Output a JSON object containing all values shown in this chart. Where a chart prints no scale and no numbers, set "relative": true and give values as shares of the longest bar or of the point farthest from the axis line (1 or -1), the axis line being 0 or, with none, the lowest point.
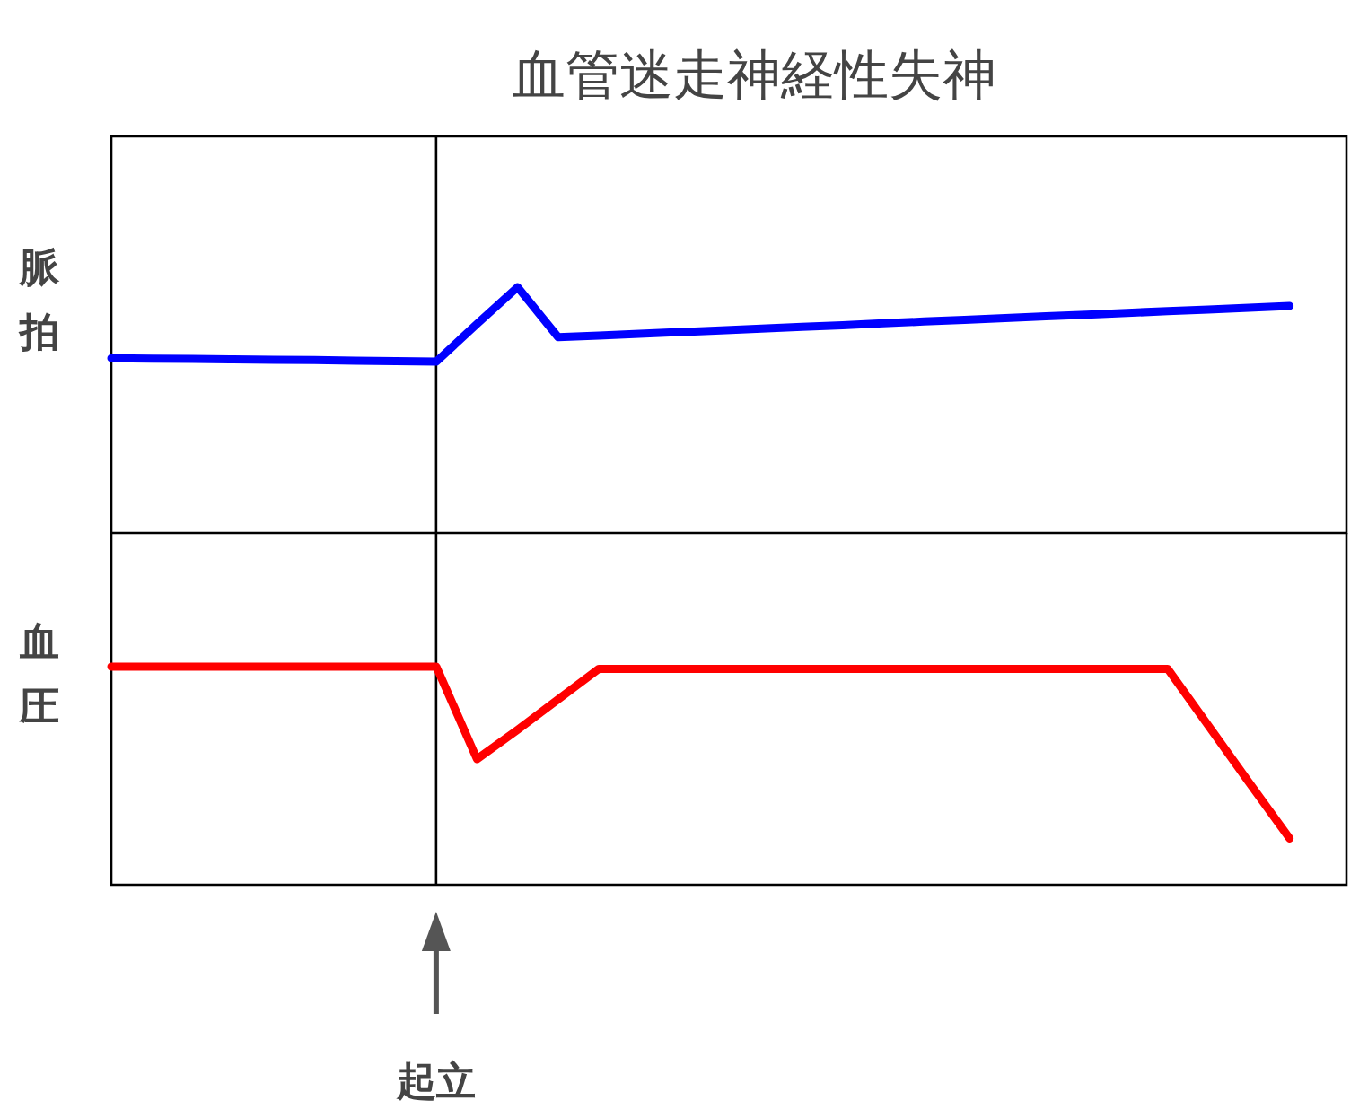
{
  "chart_data": [
    {
      "type": "line",
      "title": "血管迷走神経性失神",
      "ylabel": "脈拍",
      "relative": true,
      "categories": [
        null,
        null,
        null,
        null,
        null,
        null,
        null,
        null,
        null,
        null,
        null,
        null,
        null,
        null,
        null,
        null,
        null,
        null,
        null,
        null,
        null,
        null,
        null,
        null,
        null,
        null,
        null,
        null,
        null,
        null
      ],
      "series": [
        {
          "color": "#0000ff",
          "values": [
            0.711,
            0.709,
            0.708,
            0.706,
            0.704,
            0.703,
            0.701,
            0.699,
            0.697,
            0.85,
            1,
            0.796,
            0.803,
            0.81,
            0.817,
            0.824,
            0.831,
            0.838,
            0.845,
            0.853,
            0.86,
            0.867,
            0.874,
            0.881,
            0.888,
            0.895,
            0.902,
            0.909,
            0.916,
            0.923
          ]
        }
      ]
    },
    {
      "type": "line",
      "ylabel": "血圧",
      "relative": true,
      "annotations": [
        "起立"
      ],
      "categories": [
        null,
        null,
        null,
        null,
        null,
        null,
        null,
        null,
        null,
        null,
        null,
        null,
        null,
        null,
        null,
        null,
        null,
        null,
        null,
        null,
        null,
        null,
        null,
        null,
        null,
        null,
        null,
        null,
        null,
        null
      ],
      "series": [
        {
          "color": "#ff0000",
          "values": [
            1,
            1,
            1,
            1,
            1,
            1,
            1,
            1,
            1,
            0.576,
            0.71,
            0.85,
            0.99,
            0.99,
            0.99,
            0.99,
            0.99,
            0.99,
            0.99,
            0.99,
            0.99,
            0.99,
            0.99,
            0.99,
            0.99,
            0.99,
            0.99,
            0.73,
            0.47,
            0.212
          ]
        }
      ]
    }
  ]
}
